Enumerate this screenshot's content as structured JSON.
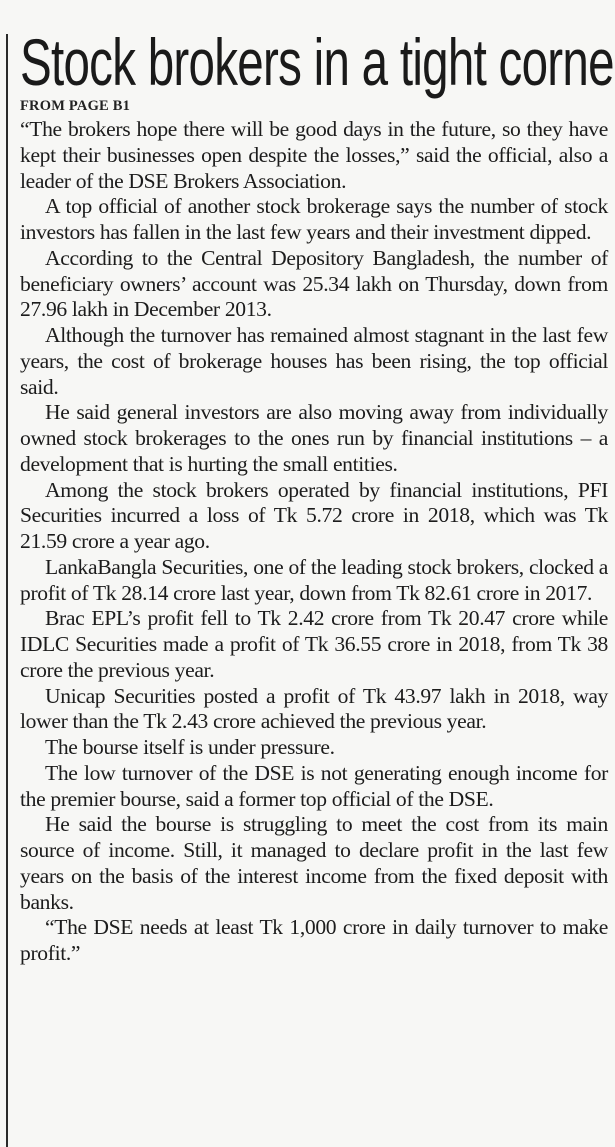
{
  "article": {
    "headline": "Stock brokers in a tight corner",
    "jump_line": "FROM PAGE B1",
    "paragraphs": [
      "“The brokers hope there will be good days in the future, so they have kept their businesses open despite the losses,” said the official, also a leader of the DSE Brokers Association.",
      "A top official of another stock brokerage says the number of stock investors has fallen in the last few years and their investment dipped.",
      "According to the Central Depository Bangladesh, the number of beneficiary owners’ account was 25.34 lakh on Thursday, down from 27.96 lakh in December 2013.",
      "Although the turnover has remained almost stagnant in the last few years, the cost of brokerage houses has been rising, the top official said.",
      "He said general investors are also moving away from individually owned stock brokerages to the ones run by financial institutions – a development that is hurting the small entities.",
      "Among the stock brokers operated by financial institutions, PFI Securities incurred a loss of Tk 5.72 crore in 2018, which was Tk 21.59 crore a year ago.",
      "LankaBangla Securities, one of the leading stock brokers, clocked a profit of Tk 28.14 crore last year, down from Tk 82.61 crore in 2017.",
      "Brac EPL’s profit fell to Tk 2.42 crore from Tk 20.47 crore while IDLC Securities made a profit of Tk 36.55 crore in 2018, from Tk 38 crore the previous year.",
      "Unicap Securities posted a profit of Tk 43.97 lakh in 2018, way lower than the Tk 2.43 crore achieved the previous year.",
      "The bourse itself is under pressure.",
      "The low turnover of the DSE is not generating enough income for the premier bourse, said a former top official of the DSE.",
      "He said the bourse is struggling to meet the cost from its main source of income. Still, it managed to declare profit in the last few years on the basis of the interest income from the fixed deposit with banks.",
      "“The DSE needs at least Tk 1,000 crore in daily turnover to make profit.”"
    ]
  }
}
